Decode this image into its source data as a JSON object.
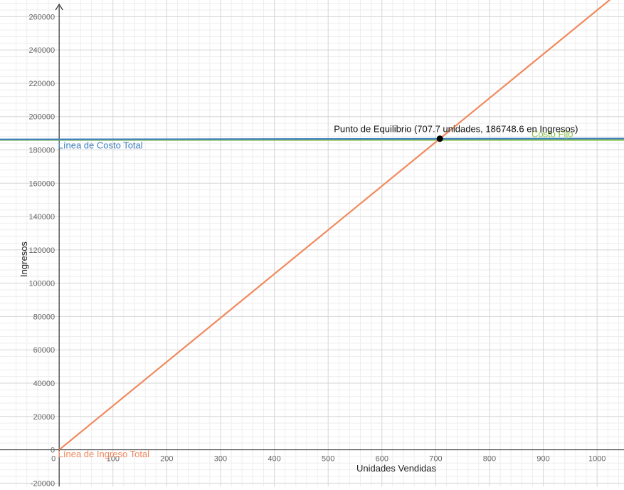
{
  "chart_data": {
    "type": "line",
    "xlabel": "Unidades Vendidas",
    "ylabel": "Ingresos",
    "xlim": [
      -110,
      1050
    ],
    "ylim": [
      -22000,
      270000
    ],
    "x_ticks": [
      0,
      100,
      200,
      300,
      400,
      500,
      600,
      700,
      800,
      900,
      1000
    ],
    "y_ticks": [
      -20000,
      0,
      20000,
      40000,
      60000,
      80000,
      100000,
      120000,
      140000,
      160000,
      180000,
      200000,
      220000,
      240000,
      260000
    ],
    "x_tick_labels": [
      "0",
      "100",
      "200",
      "300",
      "400",
      "500",
      "600",
      "700",
      "800",
      "900",
      "1000"
    ],
    "y_tick_labels": [
      "-20000",
      "0",
      "20000",
      "40000",
      "60000",
      "80000",
      "100000",
      "120000",
      "140000",
      "160000",
      "180000",
      "200000",
      "220000",
      "240000",
      "260000"
    ],
    "grid": true,
    "series": [
      {
        "name": "Línea de Ingreso Total",
        "color": "#f08a5d",
        "x": [
          0,
          1050
        ],
        "y": [
          0,
          277095
        ]
      },
      {
        "name": "Línea de Costo Total",
        "color": "#3f7fbf",
        "x": [
          -110,
          1050
        ],
        "y": [
          186300,
          186830
        ]
      },
      {
        "name": "Costo Fijo",
        "color": "#8bc34a",
        "x": [
          -110,
          1050
        ],
        "y": [
          186000,
          186000
        ]
      }
    ],
    "break_even_point": {
      "x": 707.7,
      "y": 186748.6,
      "label": "Punto de Equilibrio (707.7 unidades, 186748.6 en Ingresos)",
      "color": "#000000"
    },
    "series_labels": [
      {
        "text": "Línea de Costo Total",
        "color": "#3f7fbf",
        "x": -2,
        "y": 180800
      },
      {
        "text": "Costo Fijo",
        "color": "#8bc34a",
        "x": 878,
        "y": 187700
      },
      {
        "text": "Línea de Ingreso Total",
        "color": "#f08a5d",
        "x": -2,
        "y": -4500
      }
    ]
  }
}
